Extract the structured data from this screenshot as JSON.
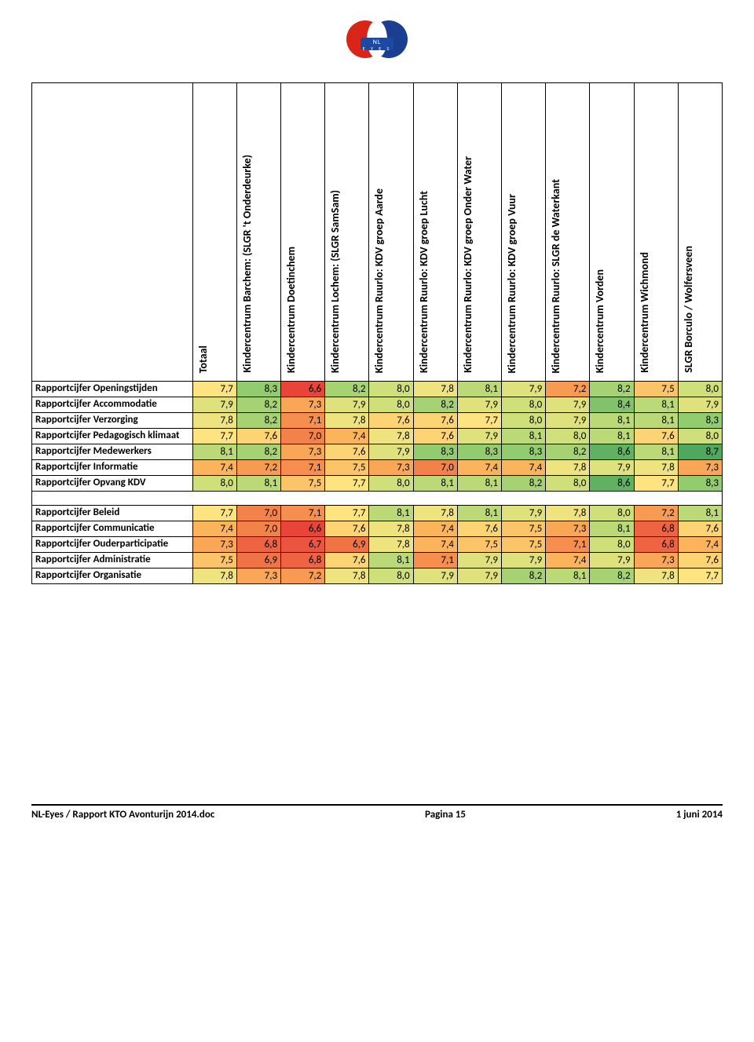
{
  "logo": {
    "top": "NL",
    "bottom": "E Y E S"
  },
  "columns": [
    "Totaal",
    "Kindercentrum Barchem: (SLGR 't Onderdeurke)",
    "Kindercentrum Doetinchem",
    "Kindercentrum Lochem: (SLGR SamSam)",
    "Kindercentrum Ruurlo: KDV groep Aarde",
    "Kindercentrum Ruurlo: KDV groep Lucht",
    "Kindercentrum Ruurlo: KDV groep Onder Water",
    "Kindercentrum Ruurlo: KDV groep Vuur",
    "Kindercentrum Ruurlo: SLGR de Waterkant",
    "Kindercentrum Vorden",
    "Kindercentrum Wichmond",
    "SLGR Borculo / Wolfersveen"
  ],
  "groups": [
    {
      "rows": [
        {
          "label": "Rapportcijfer Openingstijden",
          "values": [
            "7,7",
            "8,3",
            "6,6",
            "8,2",
            "8,0",
            "7,8",
            "8,1",
            "7,9",
            "7,2",
            "8,2",
            "7,5",
            "8,0"
          ]
        },
        {
          "label": "Rapportcijfer Accommodatie",
          "values": [
            "7,9",
            "8,2",
            "7,3",
            "7,9",
            "8,0",
            "8,2",
            "7,9",
            "8,0",
            "7,9",
            "8,4",
            "8,1",
            "7,9"
          ]
        },
        {
          "label": "Rapportcijfer Verzorging",
          "values": [
            "7,8",
            "8,2",
            "7,1",
            "7,8",
            "7,6",
            "7,6",
            "7,7",
            "8,0",
            "7,9",
            "8,1",
            "8,1",
            "8,3"
          ]
        },
        {
          "label": "Rapportcijfer Pedagogisch klimaat",
          "values": [
            "7,7",
            "7,6",
            "7,0",
            "7,4",
            "7,8",
            "7,6",
            "7,9",
            "8,1",
            "8,0",
            "8,1",
            "7,6",
            "8,0"
          ]
        },
        {
          "label": "Rapportcijfer Medewerkers",
          "values": [
            "8,1",
            "8,2",
            "7,3",
            "7,6",
            "7,9",
            "8,3",
            "8,3",
            "8,3",
            "8,2",
            "8,6",
            "8,1",
            "8,7"
          ]
        },
        {
          "label": "Rapportcijfer Informatie",
          "values": [
            "7,4",
            "7,2",
            "7,1",
            "7,5",
            "7,3",
            "7,0",
            "7,4",
            "7,4",
            "7,8",
            "7,9",
            "7,8",
            "7,3"
          ]
        },
        {
          "label": "Rapportcijfer Opvang KDV",
          "values": [
            "8,0",
            "8,1",
            "7,5",
            "7,7",
            "8,0",
            "8,1",
            "8,1",
            "8,2",
            "8,0",
            "8,6",
            "7,7",
            "8,3"
          ]
        }
      ]
    },
    {
      "rows": [
        {
          "label": "Rapportcijfer Beleid",
          "values": [
            "7,7",
            "7,0",
            "7,1",
            "7,7",
            "8,1",
            "7,8",
            "8,1",
            "7,9",
            "7,8",
            "8,0",
            "7,2",
            "8,1"
          ]
        },
        {
          "label": "Rapportcijfer Communicatie",
          "values": [
            "7,4",
            "7,0",
            "6,6",
            "7,6",
            "7,8",
            "7,4",
            "7,6",
            "7,5",
            "7,3",
            "8,1",
            "6,8",
            "7,6"
          ]
        },
        {
          "label": "Rapportcijfer Ouderparticipatie",
          "values": [
            "7,3",
            "6,8",
            "6,7",
            "6,9",
            "7,8",
            "7,4",
            "7,5",
            "7,5",
            "7,1",
            "8,0",
            "6,8",
            "7,4"
          ]
        },
        {
          "label": "Rapportcijfer Administratie",
          "values": [
            "7,5",
            "6,9",
            "6,8",
            "7,6",
            "8,1",
            "7,1",
            "7,9",
            "7,9",
            "7,4",
            "7,9",
            "7,3",
            "7,6"
          ]
        },
        {
          "label": "Rapportcijfer Organisatie",
          "values": [
            "7,8",
            "7,3",
            "7,2",
            "7,8",
            "8,0",
            "7,9",
            "7,9",
            "8,2",
            "8,1",
            "8,2",
            "7,8",
            "7,7"
          ]
        }
      ]
    }
  ],
  "heatmap": {
    "stops": [
      {
        "v": 6.6,
        "color": "#e8443a"
      },
      {
        "v": 7.0,
        "color": "#f3824a"
      },
      {
        "v": 7.4,
        "color": "#fbb45c"
      },
      {
        "v": 7.7,
        "color": "#fee480"
      },
      {
        "v": 8.0,
        "color": "#cfe07a"
      },
      {
        "v": 8.3,
        "color": "#93cb6f"
      },
      {
        "v": 8.7,
        "color": "#4fa85e"
      }
    ]
  },
  "footer": {
    "left": "NL-Eyes  /  Rapport KTO Avonturijn 2014.doc",
    "center": "Pagina 15",
    "right": "1 juni 2014"
  }
}
